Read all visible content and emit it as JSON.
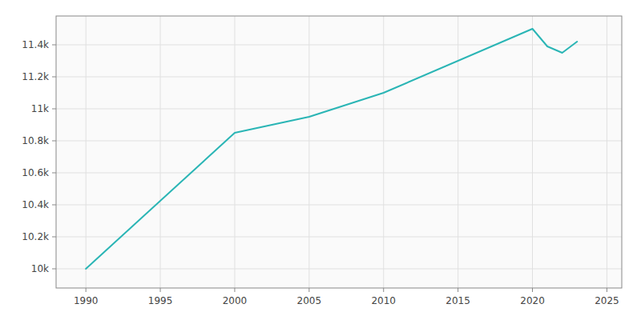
{
  "chart_data": {
    "type": "line",
    "x": [
      1990,
      2000,
      2005,
      2010,
      2020,
      2021,
      2022,
      2023
    ],
    "values": [
      10000,
      10850,
      10950,
      11100,
      11500,
      11390,
      11350,
      11420
    ],
    "color": "#2ab5b5",
    "xlim": [
      1988,
      2026
    ],
    "ylim": [
      9880,
      11580
    ],
    "xticks": [
      1990,
      1995,
      2000,
      2005,
      2010,
      2015,
      2020,
      2025
    ],
    "yticks": [
      {
        "value": 10000,
        "label": "10k"
      },
      {
        "value": 10200,
        "label": "10.2k"
      },
      {
        "value": 10400,
        "label": "10.4k"
      },
      {
        "value": 10600,
        "label": "10.6k"
      },
      {
        "value": 10800,
        "label": "10.8k"
      },
      {
        "value": 11000,
        "label": "11k"
      },
      {
        "value": 11200,
        "label": "11.2k"
      },
      {
        "value": 11400,
        "label": "11.4k"
      }
    ],
    "grid": true
  }
}
